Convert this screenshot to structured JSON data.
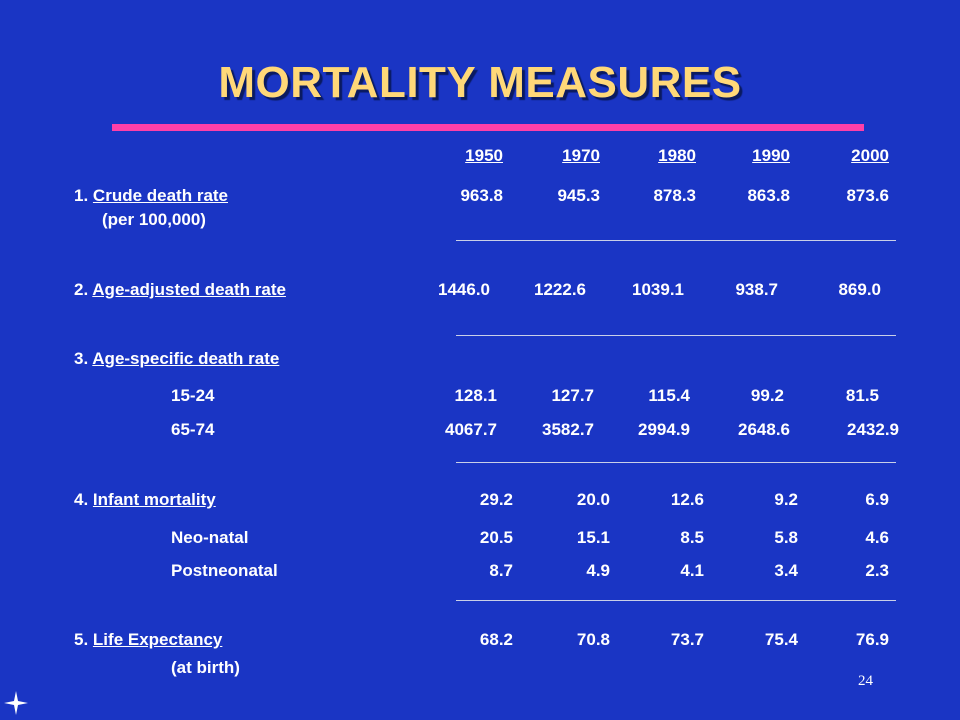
{
  "title": "MORTALITY MEASURES",
  "years": [
    "1950",
    "1970",
    "1980",
    "1990",
    "2000"
  ],
  "rows": {
    "r1": {
      "num": "1.",
      "label": "Crude death rate",
      "sub": "(per 100,000)",
      "values": [
        "963.8",
        "945.3",
        "878.3",
        "863.8",
        "873.6"
      ]
    },
    "r2": {
      "num": "2.",
      "label": "Age-adjusted death rate",
      "values": [
        "1446.0",
        "1222.6",
        "1039.1",
        "938.7",
        "869.0"
      ]
    },
    "r3": {
      "num": "3.",
      "label": "Age-specific death rate"
    },
    "r3a": {
      "label": "15-24",
      "values": [
        "128.1",
        "127.7",
        "115.4",
        "99.2",
        "81.5"
      ]
    },
    "r3b": {
      "label": "65-74",
      "values": [
        "4067.7",
        "3582.7",
        "2994.9",
        "2648.6",
        "2432.9"
      ]
    },
    "r4": {
      "num": "4.",
      "label": "Infant mortality",
      "values": [
        "29.2",
        "20.0",
        "12.6",
        "9.2",
        "6.9"
      ]
    },
    "r4a": {
      "label": "Neo-natal",
      "values": [
        "20.5",
        "15.1",
        "8.5",
        "5.8",
        "4.6"
      ]
    },
    "r4b": {
      "label": "Postneonatal",
      "values": [
        "8.7",
        "4.9",
        "4.1",
        "3.4",
        "2.3"
      ]
    },
    "r5": {
      "num": "5.",
      "label": "Life Expectancy",
      "sub": "(at birth)",
      "values": [
        "68.2",
        "70.8",
        "73.7",
        "75.4",
        "76.9"
      ]
    }
  },
  "page_number": "24",
  "colors": {
    "background": "#1a35c4",
    "title": "#ffd878",
    "accent_rule": "#ff3fa8",
    "text": "#ffffff"
  },
  "icons": {
    "corner": "four-point-star-icon"
  }
}
